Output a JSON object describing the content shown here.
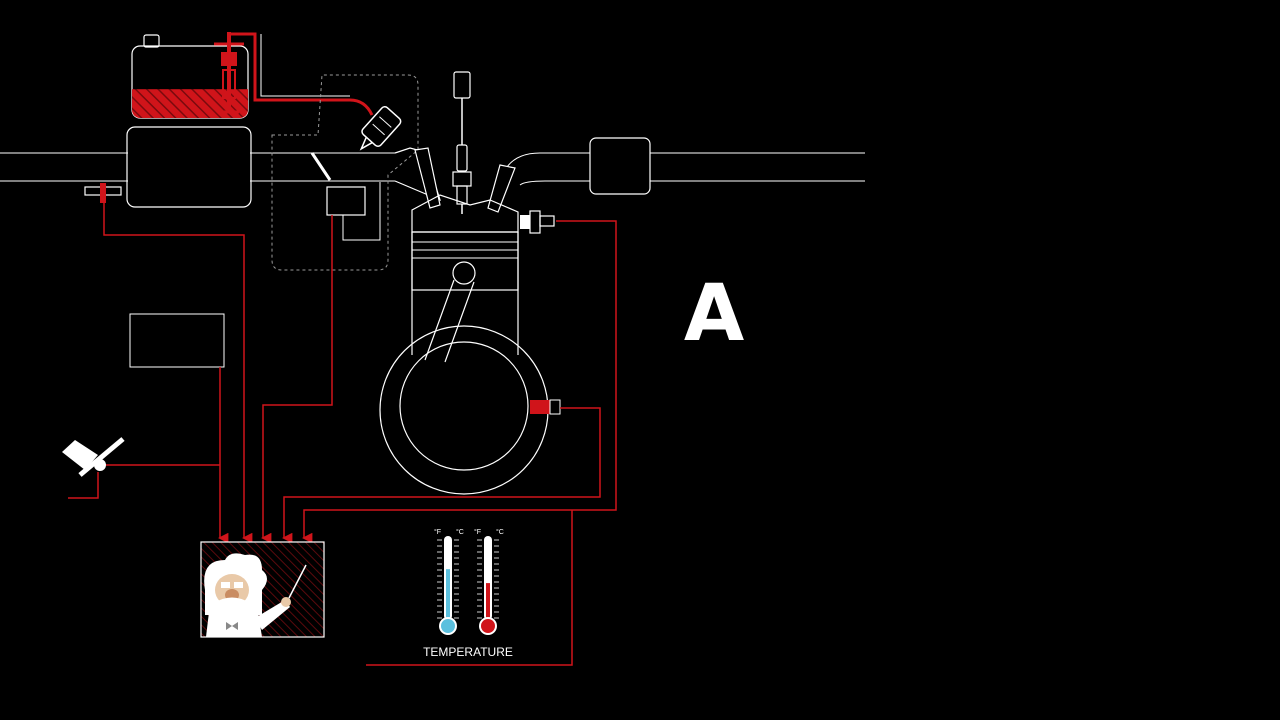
{
  "scene_letter": "A",
  "temperature": {
    "label": "TEMPERATURE",
    "unit_f": "°F",
    "unit_c": "°C",
    "cold_level": 0.62,
    "hot_level": 0.45
  },
  "fuel_tank": {
    "fill_level": 0.4
  },
  "colors": {
    "background": "#000000",
    "outline": "#ffffff",
    "signal_wire": "#d0141a",
    "cold": "#5bc0de",
    "hot": "#d0141a"
  },
  "icons": {
    "ecu_character": "professor-mascot-icon",
    "throttle_pedal": "pedal-icon",
    "spark_plug": "spark-plug-icon"
  }
}
